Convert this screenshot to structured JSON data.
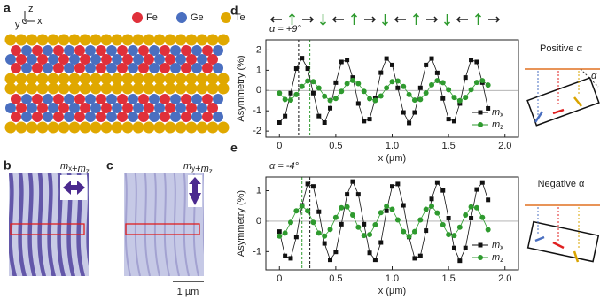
{
  "panels": {
    "a": {
      "label": "a",
      "elements": [
        "Fe",
        "Ge",
        "Te"
      ],
      "axes": [
        "z",
        "y",
        "x"
      ]
    },
    "b": {
      "label": "b",
      "caption": "mx+mz"
    },
    "c": {
      "label": "c",
      "caption": "my+mz",
      "scale_bar": "1 µm"
    },
    "right": {
      "positive": "Positive α",
      "negative": "Negative α",
      "angle": "α"
    }
  },
  "chart_data": [
    {
      "type": "line",
      "panel_label": "d",
      "annotation": "α = +9°",
      "x_label": "x (µm)",
      "y_label": "Asymmetry (%)",
      "x": [
        0,
        0.05,
        0.1,
        0.15,
        0.2,
        0.25,
        0.3,
        0.35,
        0.4,
        0.45,
        0.5,
        0.55,
        0.6,
        0.65,
        0.7,
        0.75,
        0.8,
        0.85,
        0.9,
        0.95,
        1,
        1.05,
        1.1,
        1.15,
        1.2,
        1.25,
        1.3,
        1.35,
        1.4,
        1.45,
        1.5,
        1.55,
        1.6,
        1.65,
        1.7,
        1.75,
        1.8,
        1.85
      ],
      "series": [
        {
          "name": "mx",
          "color": "#111111",
          "marker": "square",
          "values": [
            -1.58,
            -1.26,
            -0.13,
            1.08,
            1.6,
            1.08,
            -0.13,
            -1.26,
            -1.58,
            -0.87,
            0.39,
            1.41,
            1.51,
            0.64,
            -0.64,
            -1.51,
            -1.41,
            -0.39,
            0.88,
            1.58,
            1.26,
            0.13,
            -1.08,
            -1.6,
            -1.08,
            0.13,
            1.26,
            1.58,
            0.87,
            -0.39,
            -1.41,
            -1.51,
            -0.64,
            0.64,
            1.51,
            1.41,
            0.39,
            -0.88
          ]
        },
        {
          "name": "mz",
          "color": "#2e9a2e",
          "marker": "circle",
          "values": [
            -0.13,
            -0.44,
            -0.47,
            -0.2,
            0.2,
            0.47,
            0.44,
            0.12,
            -0.28,
            -0.49,
            -0.39,
            -0.04,
            0.34,
            0.5,
            0.34,
            -0.04,
            -0.4,
            -0.49,
            -0.27,
            0.13,
            0.44,
            0.47,
            0.2,
            -0.2,
            -0.47,
            -0.44,
            -0.12,
            0.28,
            0.49,
            0.39,
            0.04,
            -0.34,
            -0.5,
            -0.34,
            0.04,
            0.4,
            0.49,
            0.27
          ]
        }
      ],
      "vlines": [
        {
          "x": 0.17,
          "color": "#111111"
        },
        {
          "x": 0.27,
          "color": "#2e9a2e"
        }
      ],
      "xlim": [
        -0.12,
        2.12
      ],
      "xticks": [
        0,
        0.5,
        {
          "value": 1,
          "label": "1.0"
        },
        1.5,
        {
          "value": 2,
          "label": "2.0"
        }
      ],
      "ylim": [
        -2.3,
        2.5
      ],
      "yticks": [
        -2,
        -1,
        0,
        1,
        2
      ],
      "legend": "lower right"
    },
    {
      "type": "line",
      "panel_label": "e",
      "annotation": "α = -4°",
      "x_label": "x (µm)",
      "y_label": "Asymmetry (%)",
      "x": [
        0,
        0.05,
        0.1,
        0.15,
        0.2,
        0.25,
        0.3,
        0.35,
        0.4,
        0.45,
        0.5,
        0.55,
        0.6,
        0.65,
        0.7,
        0.75,
        0.8,
        0.85,
        0.9,
        0.95,
        1,
        1.05,
        1.1,
        1.15,
        1.2,
        1.25,
        1.3,
        1.35,
        1.4,
        1.45,
        1.5,
        1.55,
        1.6,
        1.65,
        1.7,
        1.75,
        1.8,
        1.85
      ],
      "series": [
        {
          "name": "mx",
          "color": "#111111",
          "marker": "square",
          "values": [
            -0.34,
            -1.14,
            -1.22,
            -0.52,
            0.52,
            1.22,
            1.14,
            0.31,
            -0.73,
            -1.27,
            -1.01,
            -0.1,
            0.88,
            1.3,
            0.88,
            -0.1,
            -1.04,
            -1.27,
            -0.7,
            0.34,
            1.14,
            1.22,
            0.52,
            -0.52,
            -1.22,
            -1.14,
            -0.31,
            0.73,
            1.27,
            1.01,
            0.1,
            -0.88,
            -1.3,
            -0.88,
            0.1,
            1.04,
            1.27,
            0.7
          ]
        },
        {
          "name": "mz",
          "color": "#2e9a2e",
          "marker": "circle",
          "values": [
            -0.49,
            -0.39,
            -0.04,
            0.34,
            0.5,
            0.34,
            -0.04,
            -0.39,
            -0.49,
            -0.27,
            0.12,
            0.44,
            0.47,
            0.2,
            -0.2,
            -0.47,
            -0.44,
            -0.12,
            0.28,
            0.49,
            0.39,
            0.04,
            -0.34,
            -0.5,
            -0.34,
            0.04,
            0.39,
            0.49,
            0.27,
            -0.12,
            -0.44,
            -0.47,
            -0.2,
            0.2,
            0.47,
            0.44,
            0.12,
            -0.28
          ]
        }
      ],
      "vlines": [
        {
          "x": 0.2,
          "color": "#2e9a2e"
        },
        {
          "x": 0.27,
          "color": "#111111"
        }
      ],
      "xlim": [
        -0.12,
        2.12
      ],
      "xticks": [
        0,
        0.5,
        {
          "value": 1,
          "label": "1.0"
        },
        1.5,
        {
          "value": 2,
          "label": "2.0"
        }
      ],
      "ylim": [
        -1.6,
        1.45
      ],
      "yticks": [
        -1,
        0,
        1
      ],
      "legend": "lower right"
    }
  ]
}
